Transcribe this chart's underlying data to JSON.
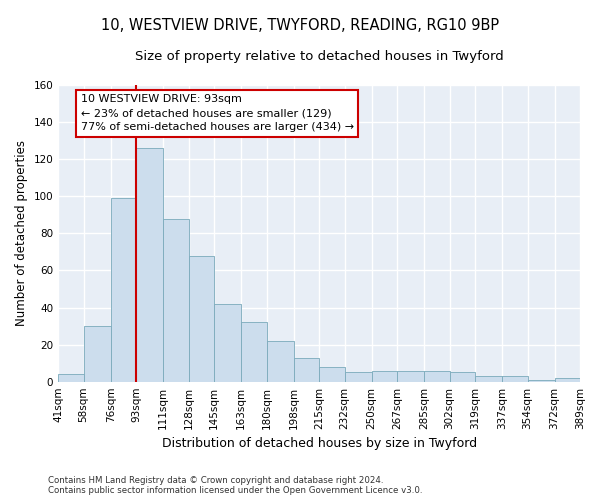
{
  "title_line1": "10, WESTVIEW DRIVE, TWYFORD, READING, RG10 9BP",
  "title_line2": "Size of property relative to detached houses in Twyford",
  "xlabel": "Distribution of detached houses by size in Twyford",
  "ylabel": "Number of detached properties",
  "footnote": "Contains HM Land Registry data © Crown copyright and database right 2024.\nContains public sector information licensed under the Open Government Licence v3.0.",
  "bar_color": "#ccdded",
  "bar_edge_color": "#7aaabb",
  "background_color": "#e8eef6",
  "grid_color": "#d0d8e4",
  "annotation_box_color": "#cc0000",
  "vline_color": "#cc0000",
  "vline_x": 93,
  "annotation_text": "10 WESTVIEW DRIVE: 93sqm\n← 23% of detached houses are smaller (129)\n77% of semi-detached houses are larger (434) →",
  "bin_edges": [
    41,
    58,
    76,
    93,
    111,
    128,
    145,
    163,
    180,
    198,
    215,
    232,
    250,
    267,
    285,
    302,
    319,
    337,
    354,
    372,
    389
  ],
  "bar_heights": [
    4,
    30,
    99,
    126,
    88,
    68,
    42,
    32,
    22,
    13,
    8,
    5,
    6,
    6,
    6,
    5,
    3,
    3,
    1,
    2
  ],
  "ylim": [
    0,
    160
  ],
  "yticks": [
    0,
    20,
    40,
    60,
    80,
    100,
    120,
    140,
    160
  ],
  "title_fontsize": 10.5,
  "subtitle_fontsize": 9.5,
  "xlabel_fontsize": 9,
  "ylabel_fontsize": 8.5,
  "annot_fontsize": 8,
  "tick_fontsize": 7.5,
  "figsize": [
    6.0,
    5.0
  ],
  "dpi": 100
}
